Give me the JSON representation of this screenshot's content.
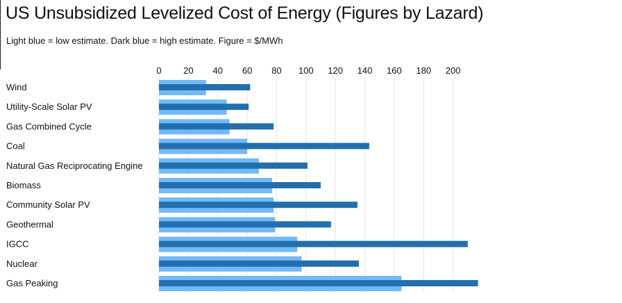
{
  "header": {
    "title": "US Unsubsidized Levelized Cost of Energy (Figures by Lazard)",
    "subtitle": "Light blue = low estimate. Dark blue = high estimate. Figure = $/MWh"
  },
  "colors": {
    "low": "#74b9f7",
    "high": "#2170ad",
    "grid": "#e6e6e6",
    "text": "#111111"
  },
  "chart_data": {
    "type": "bar",
    "orientation": "horizontal",
    "categories": [
      "Wind",
      "Utility-Scale Solar PV",
      "Gas Combined Cycle",
      "Coal",
      "Natural Gas Reciprocating Engine",
      "Biomass",
      "Community Solar PV",
      "Geothermal",
      "IGCC",
      "Nuclear",
      "Gas Peaking"
    ],
    "series": [
      {
        "values": [
          32,
          46,
          48,
          60,
          68,
          77,
          78,
          79,
          94,
          97,
          165
        ]
      },
      {
        "values": [
          62,
          61,
          78,
          143,
          101,
          110,
          135,
          117,
          210,
          136,
          217
        ]
      }
    ],
    "xticks": [
      0,
      20,
      40,
      60,
      80,
      100,
      120,
      140,
      160,
      180,
      200
    ],
    "xlim": [
      0,
      220
    ],
    "axis_position": "top",
    "grid": true,
    "legend": "none"
  }
}
